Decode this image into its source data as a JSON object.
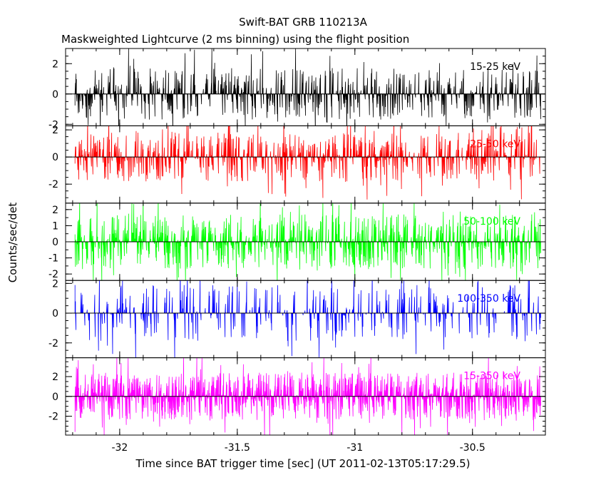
{
  "chart_data": {
    "type": "line",
    "title": "Swift-BAT GRB 110213A",
    "subtitle": "Maskweighted Lightcurve (2 ms binning) using the flight position",
    "xlabel": "Time since BAT trigger time [sec] (UT 2011-02-13T05:17:29.5)",
    "ylabel": "Counts/sec/det",
    "xlim": [
      -32.23,
      -30.19
    ],
    "x_ticks": [
      -32,
      -31.5,
      -31,
      -30.5
    ],
    "x_tick_labels": [
      "-32",
      "-31.5",
      "-31",
      "-30.5"
    ],
    "series": [
      {
        "name": "15-25 keV",
        "color": "#000000",
        "ylim": [
          -2.1,
          3.0
        ],
        "yticks": [
          -2,
          0,
          2
        ],
        "ytick_labels": [
          "-2",
          "0",
          "2"
        ],
        "density": 0.55,
        "amp": 1.7,
        "seed": 11
      },
      {
        "name": "25-50 keV",
        "color": "#ff0000",
        "ylim": [
          -3.4,
          2.3
        ],
        "yticks": [
          -2,
          0,
          2
        ],
        "ytick_labels": [
          "-2",
          "0",
          "2"
        ],
        "density": 0.6,
        "amp": 1.8,
        "seed": 23
      },
      {
        "name": "50-100 keV",
        "color": "#00ff00",
        "ylim": [
          -2.4,
          2.4
        ],
        "yticks": [
          -2,
          -1,
          0,
          1,
          2
        ],
        "ytick_labels": [
          "-2",
          "-1",
          "0",
          "1",
          "2"
        ],
        "density": 0.7,
        "amp": 1.7,
        "seed": 37
      },
      {
        "name": "100-350 keV",
        "color": "#0000ff",
        "ylim": [
          -3.0,
          2.2
        ],
        "yticks": [
          -2,
          0,
          2
        ],
        "ytick_labels": [
          "-2",
          "0",
          "2"
        ],
        "density": 0.35,
        "amp": 1.9,
        "seed": 41
      },
      {
        "name": "15-350 keV",
        "color": "#ff00ff",
        "ylim": [
          -3.9,
          3.9
        ],
        "yticks": [
          -2,
          0,
          2
        ],
        "ytick_labels": [
          "-2",
          "0",
          "2"
        ],
        "density": 0.95,
        "amp": 2.4,
        "seed": 53
      }
    ]
  }
}
